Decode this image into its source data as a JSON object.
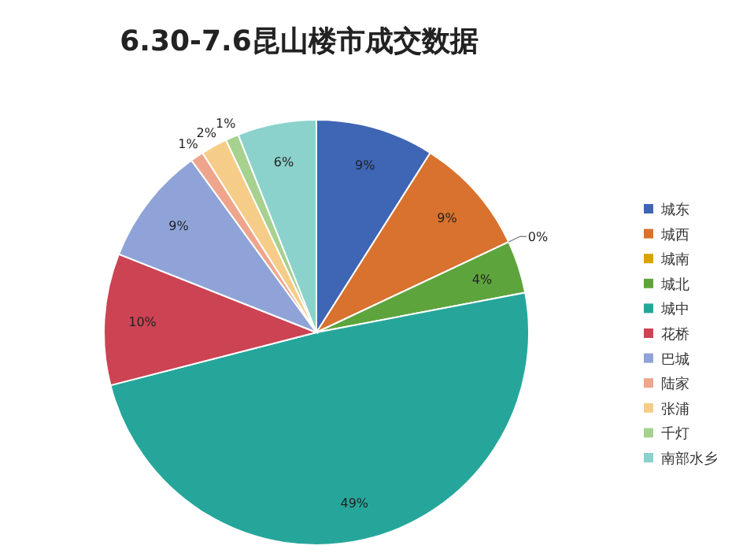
{
  "chart_data": {
    "type": "pie",
    "title": "6.30-7.6昆山楼市成交数据",
    "categories": [
      "城东",
      "城西",
      "城南",
      "城北",
      "城中",
      "花桥",
      "巴城",
      "陆家",
      "张浦",
      "千灯",
      "南部水乡"
    ],
    "values": [
      9,
      9,
      0,
      4,
      49,
      10,
      9,
      1,
      2,
      1,
      6
    ],
    "value_labels": [
      "9%",
      "9%",
      "0%",
      "4%",
      "49%",
      "10%",
      "9%",
      "1%",
      "2%",
      "1%",
      "6%"
    ],
    "colors": [
      "#3f65b5",
      "#d8722e",
      "#d8a400",
      "#5ea43d",
      "#26a69a",
      "#cc4353",
      "#8fa3d8",
      "#eea58c",
      "#f5cd88",
      "#a6d18e",
      "#8bd2cc"
    ],
    "legend": "right"
  }
}
